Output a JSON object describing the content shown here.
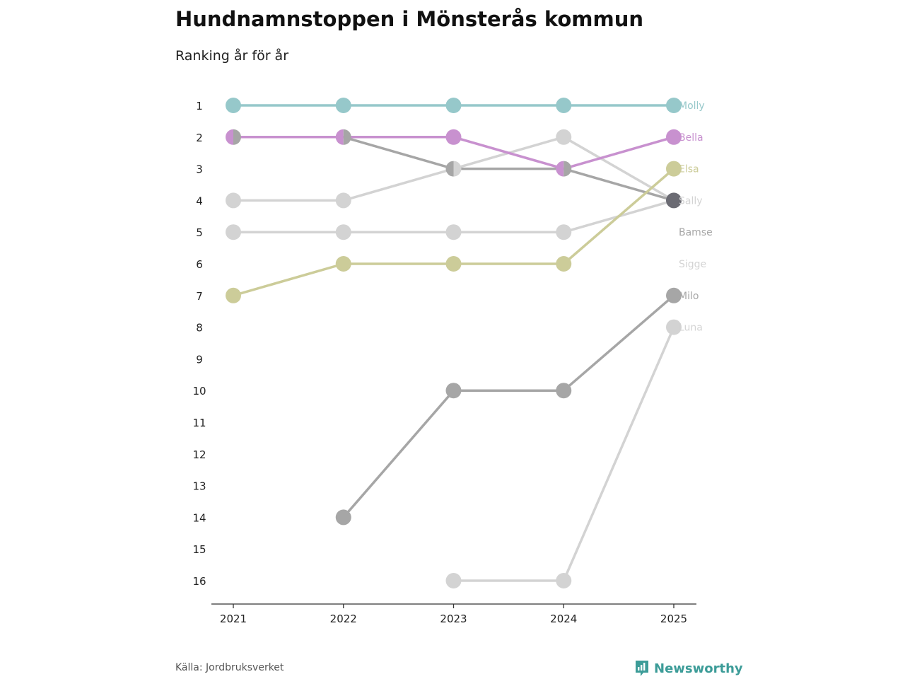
{
  "chart_data": {
    "type": "line",
    "title": "Hundnamnstoppen i Mönsterås kommun",
    "subtitle": "Ranking år för år",
    "x": [
      "2021",
      "2022",
      "2023",
      "2024",
      "2025"
    ],
    "ylim": [
      1,
      16
    ],
    "y_ticks": [
      "1",
      "2",
      "3",
      "4",
      "5",
      "6",
      "7",
      "8",
      "9",
      "10",
      "11",
      "12",
      "13",
      "14",
      "15",
      "16"
    ],
    "y_inverted": true,
    "series": [
      {
        "name": "Luna",
        "color": "#d3d3d3",
        "values": [
          null,
          null,
          16,
          16,
          8
        ]
      },
      {
        "name": "Sigge",
        "color": "#d3d3d3",
        "values": [
          4,
          4,
          3,
          2,
          4
        ]
      },
      {
        "name": "Bamse",
        "color": "#d3d3d3",
        "values": [
          5,
          5,
          5,
          5,
          4
        ]
      },
      {
        "name": "Milo",
        "color": "#a6a6a6",
        "values": [
          null,
          14,
          10,
          10,
          7
        ]
      },
      {
        "name": "Sally",
        "color": "#a6a6a6",
        "values": [
          2,
          2,
          3,
          3,
          4
        ]
      },
      {
        "name": "Elsa",
        "color": "#cccc99",
        "values": [
          7,
          6,
          6,
          6,
          3
        ]
      },
      {
        "name": "Bella",
        "color": "#c891cf",
        "values": [
          2,
          2,
          2,
          3,
          2
        ]
      },
      {
        "name": "Molly",
        "color": "#96c8ca",
        "values": [
          1,
          1,
          1,
          1,
          1
        ]
      }
    ],
    "end_labels": [
      {
        "name": "Molly",
        "rank": 1,
        "color": "#96c8ca"
      },
      {
        "name": "Bella",
        "rank": 2,
        "color": "#c891cf"
      },
      {
        "name": "Elsa",
        "rank": 3,
        "color": "#cccc99"
      },
      {
        "name": "Sally",
        "rank": 4,
        "color": "#d3d3d3"
      },
      {
        "name": "Bamse",
        "rank": 5,
        "color": "#a6a6a6"
      },
      {
        "name": "Sigge",
        "rank": 6,
        "color": "#d3d3d3"
      },
      {
        "name": "Milo",
        "rank": 7,
        "color": "#a6a6a6"
      },
      {
        "name": "Luna",
        "rank": 8,
        "color": "#d3d3d3"
      }
    ],
    "tie_point_color": "#6b6b73"
  },
  "footer": {
    "source": "Källa: Jordbruksverket",
    "brand": "Newsworthy"
  },
  "colors": {
    "brand": "#3c9c98",
    "axis": "#333333"
  }
}
